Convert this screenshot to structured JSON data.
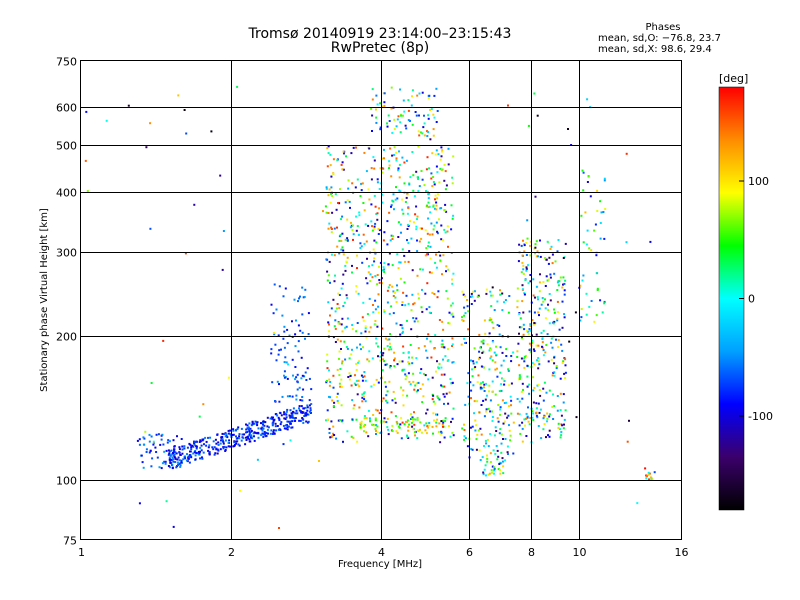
{
  "header": {
    "title_line1": "Tromsø 20140919 23:14:00–23:15:43",
    "title_line2": "RwPretec (8p)",
    "stats_heading": "Phases",
    "stats_line1": "mean, sd,O: −76.8, 23.7",
    "stats_line2": "mean, sd,X:  98.6, 29.4"
  },
  "chart_data": {
    "type": "scatter",
    "title": "Tromsø 20140919 23:14:00–23:15:43",
    "subtitle": "RwPretec (8p)",
    "xlabel": "Frequency [MHz]",
    "ylabel": "Stationary phase Virtual Height [km]",
    "x_scale": "log",
    "y_scale": "log",
    "xlim": [
      1,
      16
    ],
    "ylim": [
      75,
      750
    ],
    "x_ticks": [
      1,
      2,
      4,
      6,
      8,
      10,
      16
    ],
    "y_ticks": [
      75,
      100,
      200,
      300,
      400,
      500,
      600,
      750
    ],
    "grid": true,
    "colorbar": {
      "label": "[deg]",
      "range": [
        -180,
        180
      ],
      "ticks": [
        100,
        0,
        -100
      ],
      "colormap": [
        "#000000",
        "#3b006b",
        "#0000ff",
        "#00a0ff",
        "#00ffff",
        "#00ff00",
        "#ffff00",
        "#ff8c00",
        "#ff0000"
      ]
    },
    "clusters": [
      {
        "x_range": [
          1.5,
          2.9
        ],
        "y_range": [
          110,
          145
        ],
        "phase_range": [
          -110,
          -50
        ],
        "count": 420,
        "spread": "slope"
      },
      {
        "x_range": [
          1.3,
          1.6
        ],
        "y_range": [
          105,
          125
        ],
        "phase_range": [
          -100,
          -40
        ],
        "count": 60
      },
      {
        "x_range": [
          2.4,
          2.9
        ],
        "y_range": [
          145,
          260
        ],
        "phase_range": [
          -100,
          -40
        ],
        "count": 90
      },
      {
        "x_range": [
          3.1,
          5.6
        ],
        "y_range": [
          120,
          500
        ],
        "phase_range": [
          -130,
          170
        ],
        "count": 900
      },
      {
        "x_range": [
          3.8,
          5.2
        ],
        "y_range": [
          520,
          660
        ],
        "phase_range": [
          -110,
          160
        ],
        "count": 80
      },
      {
        "x_range": [
          3.6,
          5.4
        ],
        "y_range": [
          125,
          135
        ],
        "phase_range": [
          40,
          130
        ],
        "count": 60
      },
      {
        "x_range": [
          5.8,
          7.4
        ],
        "y_range": [
          110,
          250
        ],
        "phase_range": [
          -140,
          150
        ],
        "count": 240
      },
      {
        "x_range": [
          6.4,
          7.1
        ],
        "y_range": [
          102,
          110
        ],
        "phase_range": [
          -130,
          120
        ],
        "count": 25
      },
      {
        "x_range": [
          7.5,
          9.4
        ],
        "y_range": [
          120,
          320
        ],
        "phase_range": [
          -150,
          150
        ],
        "count": 330
      },
      {
        "x_range": [
          10.0,
          11.3
        ],
        "y_range": [
          200,
          450
        ],
        "phase_range": [
          -110,
          140
        ],
        "count": 50
      },
      {
        "x_range": [
          13.6,
          14.2
        ],
        "y_range": [
          100,
          104
        ],
        "phase_range": [
          -120,
          180
        ],
        "count": 12
      },
      {
        "x_range": [
          1.0,
          15.0
        ],
        "y_range": [
          78,
          680
        ],
        "phase_range": [
          -180,
          180
        ],
        "count": 70
      }
    ]
  }
}
